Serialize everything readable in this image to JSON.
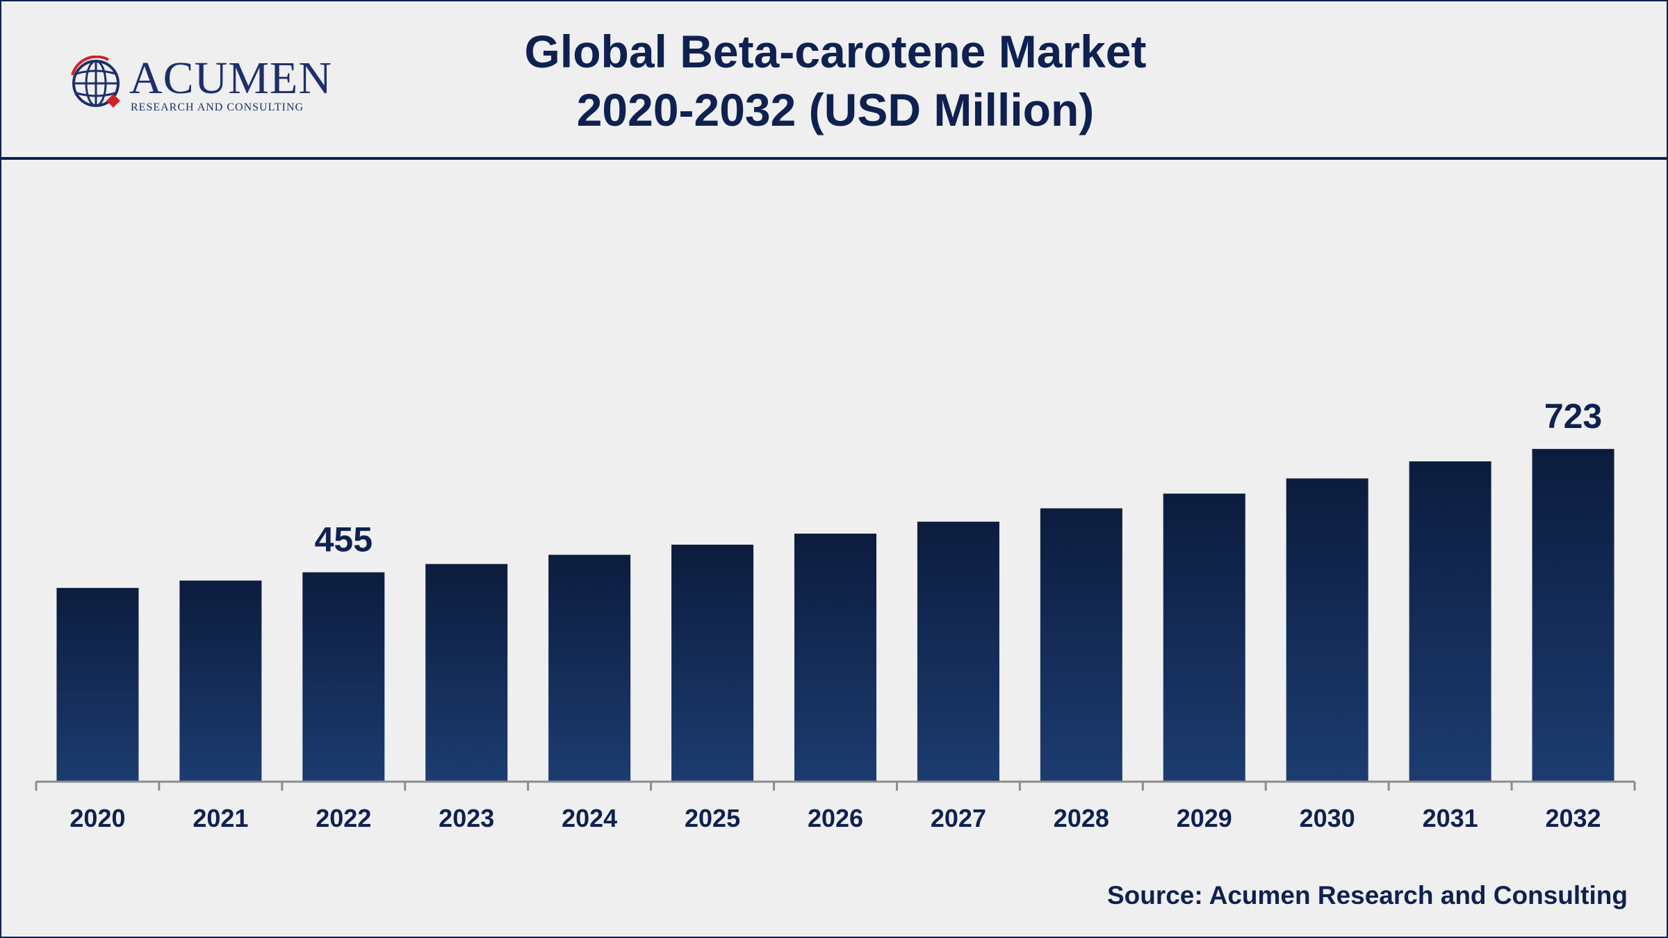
{
  "header": {
    "title_line1": "Global Beta-carotene Market",
    "title_line2": "2020-2032 (USD Million)"
  },
  "logo": {
    "name": "ACUMEN",
    "tagline": "RESEARCH AND CONSULTING"
  },
  "footer": {
    "source": "Source: Acumen Research and Consulting"
  },
  "colors": {
    "bar_top": "#0c1c3e",
    "bar_bottom": "#1c3c70",
    "text": "#0e2150",
    "axis": "#8c8c8c"
  },
  "chart_data": {
    "type": "bar",
    "categories": [
      "2020",
      "2021",
      "2022",
      "2023",
      "2024",
      "2025",
      "2026",
      "2027",
      "2028",
      "2029",
      "2030",
      "2031",
      "2032"
    ],
    "values": [
      421,
      437,
      455,
      473,
      493,
      515,
      539,
      565,
      594,
      626,
      659,
      696,
      723
    ],
    "data_labels": [
      null,
      null,
      "455",
      null,
      null,
      null,
      null,
      null,
      null,
      null,
      null,
      null,
      "723"
    ],
    "ylim": [
      0,
      800
    ],
    "grid": false,
    "legend": "none"
  }
}
